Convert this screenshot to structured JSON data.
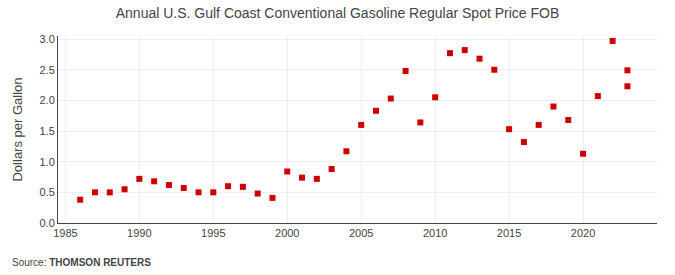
{
  "chart_data": {
    "type": "scatter",
    "title": "Annual U.S. Gulf Coast Conventional Gasoline Regular Spot Price FOB",
    "ylabel": "Dollars per Gallon",
    "x": [
      1986,
      1987,
      1988,
      1989,
      1990,
      1991,
      1992,
      1993,
      1994,
      1995,
      1996,
      1997,
      1998,
      1999,
      2000,
      2001,
      2002,
      2003,
      2004,
      2005,
      2006,
      2007,
      2008,
      2009,
      2010,
      2011,
      2012,
      2013,
      2014,
      2015,
      2016,
      2017,
      2018,
      2019,
      2020,
      2021,
      2022,
      2023,
      2023
    ],
    "values": [
      0.38,
      0.5,
      0.5,
      0.55,
      0.72,
      0.68,
      0.62,
      0.57,
      0.5,
      0.5,
      0.6,
      0.59,
      0.48,
      0.41,
      0.84,
      0.74,
      0.72,
      0.88,
      1.17,
      1.6,
      1.83,
      2.03,
      2.48,
      1.64,
      2.05,
      2.77,
      2.82,
      2.68,
      2.5,
      1.53,
      1.32,
      1.6,
      1.9,
      1.68,
      1.13,
      2.07,
      2.97,
      2.49,
      2.23
    ],
    "color": "#cc0000",
    "marker": "square",
    "xlim": [
      1984.5,
      2025
    ],
    "ylim": [
      0.0,
      3.05
    ],
    "xticks": [
      1985,
      1990,
      1995,
      2000,
      2005,
      2010,
      2015,
      2020
    ],
    "yticks": [
      {
        "value": 0.0,
        "label": "0.0"
      },
      0.5,
      {
        "value": 1.0,
        "label": "1.0"
      },
      1.5,
      {
        "value": 2.0,
        "label": "2.0"
      },
      2.5,
      {
        "value": 3.0,
        "label": "3.0"
      }
    ],
    "grid": true,
    "annotations": [
      {
        "text": "Source:"
      },
      {
        "text": "THOMSON REUTERS"
      }
    ]
  }
}
